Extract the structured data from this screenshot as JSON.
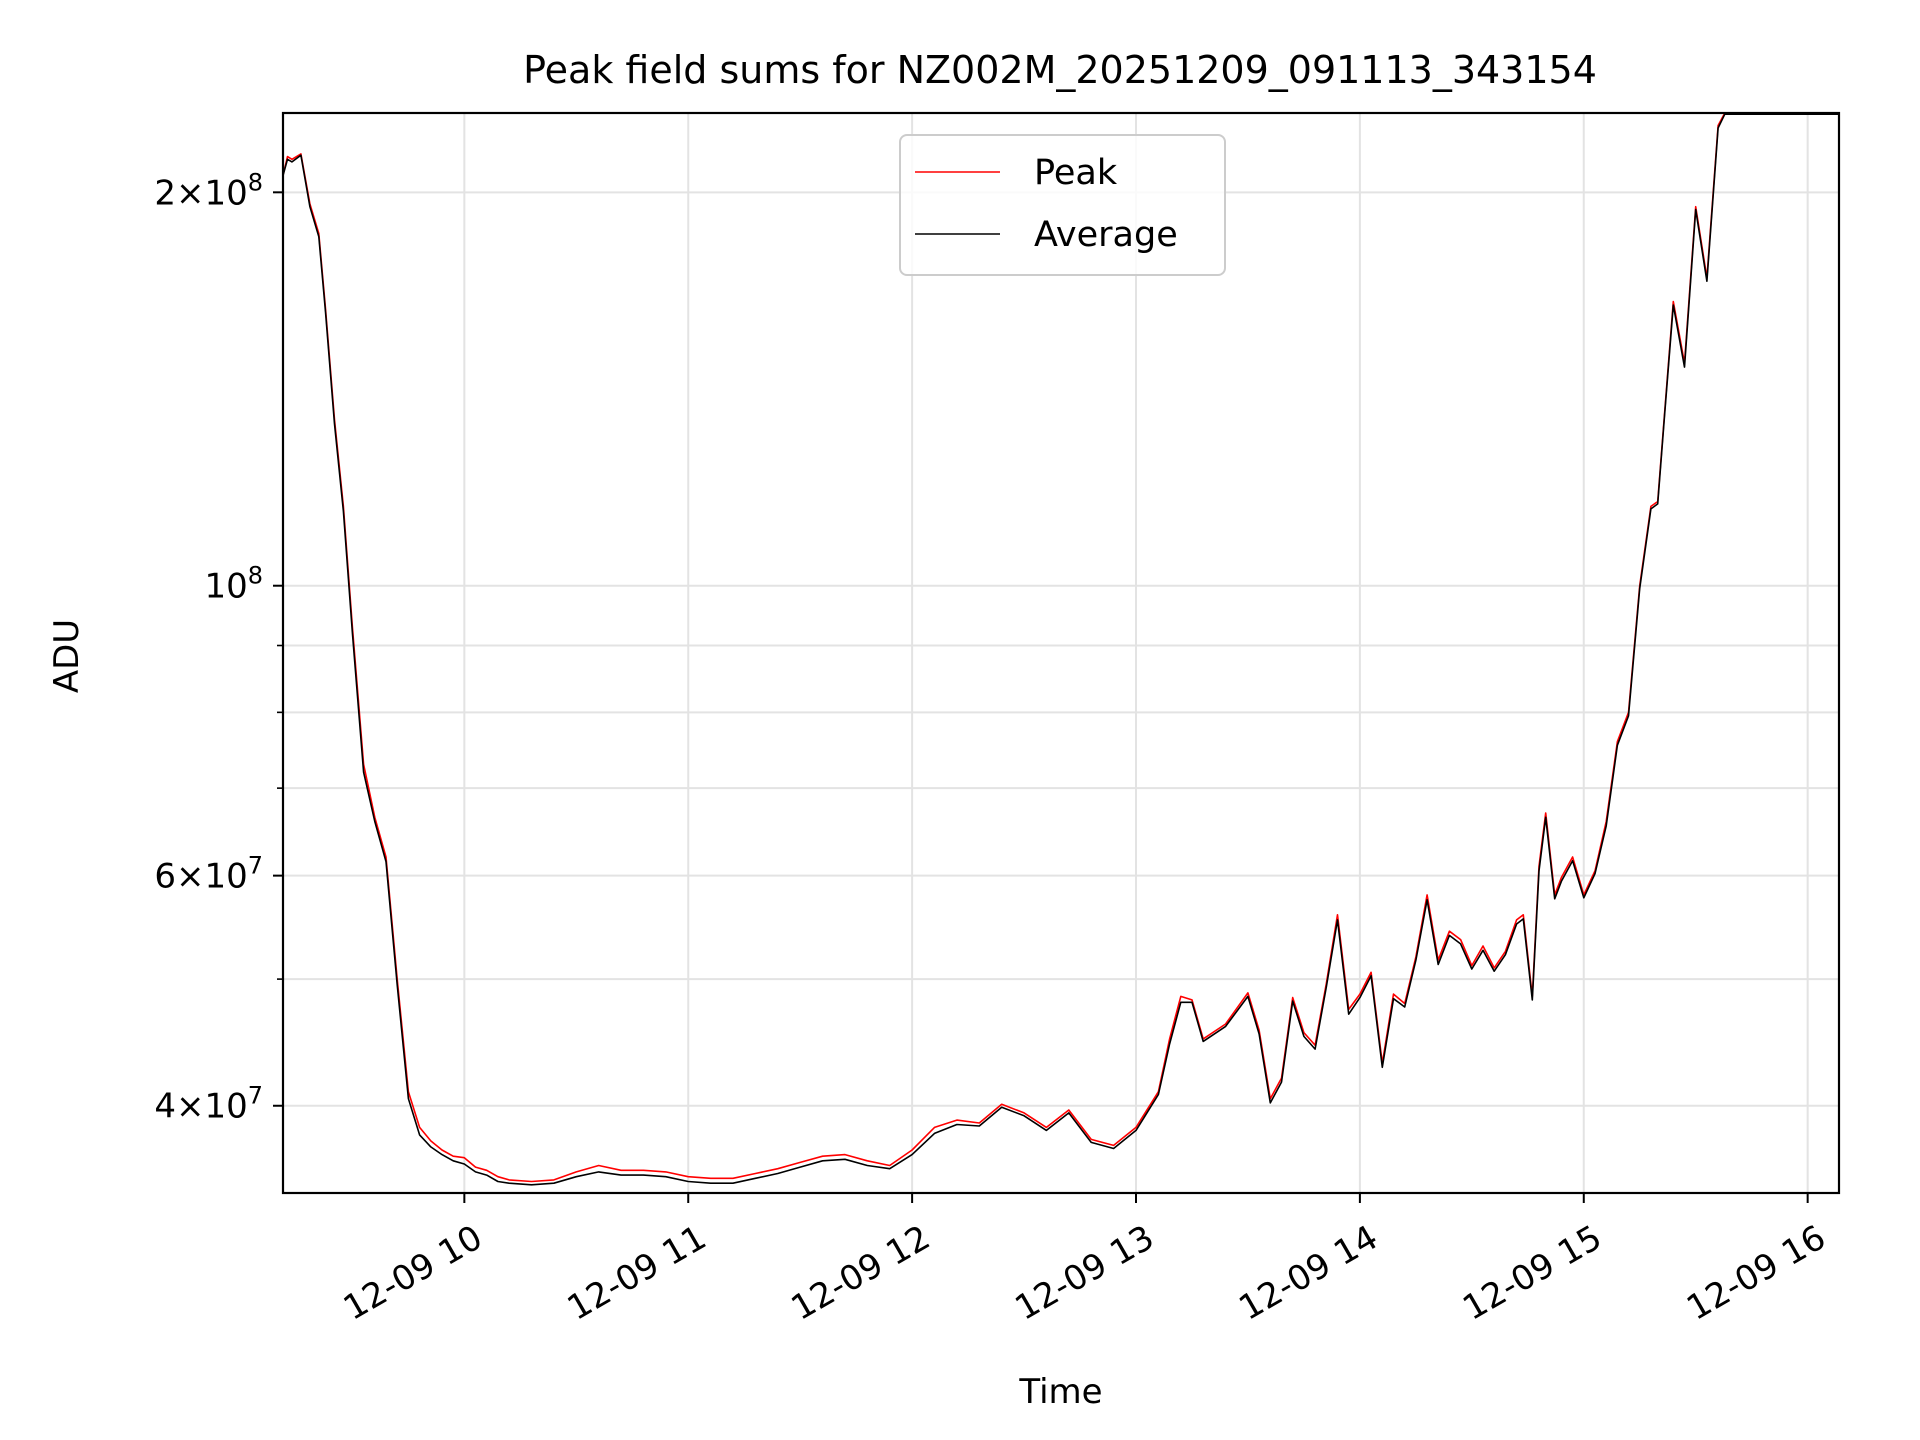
{
  "chart_data": {
    "type": "line",
    "title": "Peak field sums for NZ002M_20251209_091113_343154",
    "xlabel": "Time",
    "ylabel": "ADU",
    "x_units": "hours (decimal, 2025-12-09)",
    "xlim": [
      9.19,
      16.14
    ],
    "ylim": [
      34300000,
      230000000
    ],
    "yscale": "log",
    "grid": true,
    "legend_position": "top-center",
    "x_ticks": [
      {
        "value": 10,
        "label": "12-09 10"
      },
      {
        "value": 11,
        "label": "12-09 11"
      },
      {
        "value": 12,
        "label": "12-09 12"
      },
      {
        "value": 13,
        "label": "12-09 13"
      },
      {
        "value": 14,
        "label": "12-09 14"
      },
      {
        "value": 15,
        "label": "12-09 15"
      },
      {
        "value": 16,
        "label": "12-09 16"
      }
    ],
    "y_major_ticks": [
      {
        "value": 40000000,
        "mantissa": "4",
        "exponent": "7"
      },
      {
        "value": 60000000,
        "mantissa": "6",
        "exponent": "7"
      },
      {
        "value": 100000000,
        "mantissa": "",
        "exponent": "8"
      },
      {
        "value": 200000000,
        "mantissa": "2",
        "exponent": "8"
      }
    ],
    "y_minor_ticks": [
      50000000,
      70000000,
      80000000,
      90000000
    ],
    "series": [
      {
        "name": "Peak",
        "color": "#ff0000",
        "x": [
          9.19,
          9.21,
          9.23,
          9.27,
          9.31,
          9.35,
          9.38,
          9.42,
          9.46,
          9.5,
          9.55,
          9.6,
          9.65,
          9.7,
          9.75,
          9.8,
          9.85,
          9.9,
          9.95,
          10.0,
          10.05,
          10.1,
          10.15,
          10.2,
          10.3,
          10.4,
          10.5,
          10.6,
          10.7,
          10.8,
          10.9,
          11.0,
          11.1,
          11.2,
          11.3,
          11.4,
          11.5,
          11.6,
          11.7,
          11.8,
          11.9,
          12.0,
          12.1,
          12.2,
          12.3,
          12.4,
          12.5,
          12.6,
          12.7,
          12.8,
          12.9,
          13.0,
          13.1,
          13.15,
          13.2,
          13.25,
          13.3,
          13.4,
          13.5,
          13.55,
          13.6,
          13.65,
          13.7,
          13.75,
          13.8,
          13.85,
          13.9,
          13.95,
          14.0,
          14.05,
          14.1,
          14.15,
          14.2,
          14.25,
          14.3,
          14.35,
          14.4,
          14.45,
          14.5,
          14.55,
          14.6,
          14.65,
          14.7,
          14.73,
          14.77,
          14.8,
          14.83,
          14.87,
          14.9,
          14.95,
          15.0,
          15.05,
          15.1,
          15.15,
          15.2,
          15.25,
          15.3,
          15.33,
          15.36,
          15.4,
          15.45,
          15.5,
          15.55,
          15.6,
          15.63,
          15.67,
          15.7,
          15.72,
          15.75,
          15.78,
          15.82,
          15.86,
          15.88,
          15.9,
          15.93,
          16.0,
          16.05,
          16.14
        ],
        "y": [
          206000000,
          213000000,
          212000000,
          214000000,
          196000000,
          186000000,
          163000000,
          134000000,
          115000000,
          93000000,
          73000000,
          66500000,
          62000000,
          50000000,
          41000000,
          38500000,
          37600000,
          37000000,
          36600000,
          36500000,
          35900000,
          35700000,
          35300000,
          35100000,
          35000000,
          35100000,
          35600000,
          36000000,
          35700000,
          35700000,
          35600000,
          35300000,
          35200000,
          35200000,
          35500000,
          35800000,
          36200000,
          36600000,
          36700000,
          36300000,
          36000000,
          37000000,
          38500000,
          39000000,
          38800000,
          40100000,
          39500000,
          38500000,
          39700000,
          37700000,
          37300000,
          38500000,
          41000000,
          45000000,
          48500000,
          48200000,
          45000000,
          46200000,
          48800000,
          45700000,
          40500000,
          42000000,
          48400000,
          45500000,
          44500000,
          49600000,
          56000000,
          47400000,
          48700000,
          50600000,
          43100000,
          48700000,
          47900000,
          52000000,
          58000000,
          51700000,
          54400000,
          53600000,
          51200000,
          53000000,
          51000000,
          52500000,
          55500000,
          56000000,
          48500000,
          61000000,
          67000000,
          58000000,
          59800000,
          62000000,
          58000000,
          60500000,
          66000000,
          76000000,
          80000000,
          100000000,
          115000000,
          116000000,
          135000000,
          165000000,
          148000000,
          195000000,
          172000000,
          225000000,
          230000000,
          230000000,
          230000000,
          230000000,
          230000000,
          230000000,
          230000000,
          230000000,
          230000000,
          230000000,
          230000000,
          230000000,
          230000000,
          230000000
        ]
      },
      {
        "name": "Average",
        "color": "#000000",
        "x": [
          9.19,
          9.21,
          9.23,
          9.27,
          9.31,
          9.35,
          9.38,
          9.42,
          9.46,
          9.5,
          9.55,
          9.6,
          9.65,
          9.7,
          9.75,
          9.8,
          9.85,
          9.9,
          9.95,
          10.0,
          10.05,
          10.1,
          10.15,
          10.2,
          10.3,
          10.4,
          10.5,
          10.6,
          10.7,
          10.8,
          10.9,
          11.0,
          11.1,
          11.2,
          11.3,
          11.4,
          11.5,
          11.6,
          11.7,
          11.8,
          11.9,
          12.0,
          12.1,
          12.2,
          12.3,
          12.4,
          12.5,
          12.6,
          12.7,
          12.8,
          12.9,
          13.0,
          13.1,
          13.15,
          13.2,
          13.25,
          13.3,
          13.4,
          13.5,
          13.55,
          13.6,
          13.65,
          13.7,
          13.75,
          13.8,
          13.85,
          13.9,
          13.95,
          14.0,
          14.05,
          14.1,
          14.15,
          14.2,
          14.25,
          14.3,
          14.35,
          14.4,
          14.45,
          14.5,
          14.55,
          14.6,
          14.65,
          14.7,
          14.73,
          14.77,
          14.8,
          14.83,
          14.87,
          14.9,
          14.95,
          15.0,
          15.05,
          15.1,
          15.15,
          15.2,
          15.25,
          15.3,
          15.33,
          15.36,
          15.4,
          15.45,
          15.5,
          15.55,
          15.6,
          15.63,
          15.67,
          15.7,
          15.72,
          15.75,
          15.78,
          15.82,
          15.86,
          15.88,
          15.9,
          15.93,
          16.0,
          16.05,
          16.14
        ],
        "y": [
          206000000,
          212000000,
          211000000,
          213500000,
          195000000,
          185000000,
          162000000,
          133000000,
          114000000,
          92000000,
          72000000,
          66000000,
          61500000,
          49500000,
          40500000,
          38000000,
          37200000,
          36700000,
          36300000,
          36100000,
          35600000,
          35400000,
          35000000,
          34900000,
          34800000,
          34900000,
          35300000,
          35600000,
          35400000,
          35400000,
          35300000,
          35000000,
          34900000,
          34900000,
          35200000,
          35500000,
          35900000,
          36300000,
          36400000,
          36000000,
          35800000,
          36700000,
          38100000,
          38700000,
          38600000,
          39900000,
          39300000,
          38300000,
          39500000,
          37500000,
          37100000,
          38300000,
          40800000,
          44600000,
          48000000,
          48000000,
          44800000,
          46000000,
          48500000,
          45400000,
          40200000,
          41700000,
          48100000,
          45200000,
          44200000,
          49300000,
          55500000,
          47000000,
          48400000,
          50300000,
          42800000,
          48300000,
          47600000,
          51700000,
          57500000,
          51300000,
          54000000,
          53200000,
          50900000,
          52600000,
          50700000,
          52200000,
          55100000,
          55600000,
          48200000,
          60500000,
          66500000,
          57600000,
          59400000,
          61600000,
          57700000,
          60200000,
          65500000,
          75500000,
          79500000,
          99500000,
          114500000,
          115500000,
          134500000,
          164000000,
          147000000,
          194000000,
          171000000,
          224000000,
          229500000,
          229500000,
          229500000,
          229500000,
          229500000,
          229500000,
          229500000,
          229500000,
          229500000,
          229500000,
          229500000,
          229500000,
          229500000,
          229500000
        ]
      }
    ]
  }
}
